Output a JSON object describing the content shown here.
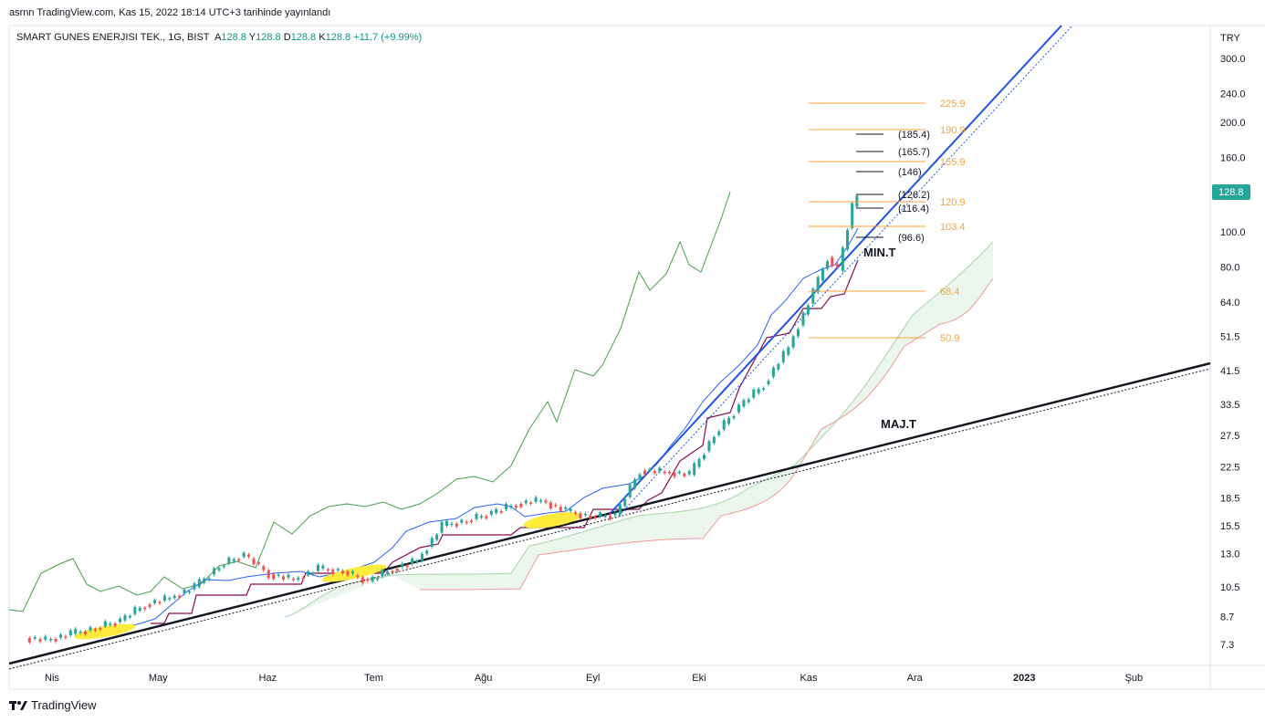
{
  "header": "asrnn TradingView.com, Kas 15, 2022 18:14 UTC+3 tarihinde yayınlandı",
  "legend": {
    "symbol": "SMART GUNES ENERJISI TEK., 1G, BIST",
    "a_key": "A",
    "a_val": "128.8",
    "y_key": "Y",
    "y_val": "128.8",
    "d_key": "D",
    "d_val": "128.8",
    "k_key": "K",
    "k_val": "128.8",
    "change": "+11.7 (+9.99%)"
  },
  "footer": {
    "brand": "TradingView",
    "logo_icon": "tradingview-logo-icon"
  },
  "colors": {
    "up": "#26a69a",
    "down": "#ef5350",
    "tenkan": "#2962ff",
    "kijun": "#880e4f",
    "chikou": "#43a047",
    "cloud": "#a5d6a7",
    "fib": "#f7a23b",
    "trend": "#1e53e5"
  },
  "chart_data": {
    "type": "candlestick",
    "currency": "TRY",
    "scale": "log",
    "ylim": [
      6.8,
      380
    ],
    "y_ticks": [
      "300.0",
      "240.0",
      "200.0",
      "160.0",
      "128.8",
      "100.0",
      "80.0",
      "64.0",
      "51.5",
      "41.5",
      "33.5",
      "27.5",
      "22.5",
      "18.5",
      "15.5",
      "13.0",
      "10.5",
      "8.7",
      "7.3"
    ],
    "y_tick_values": [
      300,
      240,
      200,
      160,
      128.8,
      100,
      80,
      64,
      51.5,
      41.5,
      33.5,
      27.5,
      22.5,
      18.5,
      15.5,
      13.0,
      10.5,
      8.7,
      7.3
    ],
    "last_price": "128.8",
    "x_ticks": [
      "Nis",
      "May",
      "Haz",
      "Tem",
      "Ağu",
      "Eyl",
      "Eki",
      "Kas",
      "Ara",
      "2023",
      "Şub"
    ],
    "x_tick_dates": [
      "2022-04-01",
      "2022-05-01",
      "2022-06-01",
      "2022-07-01",
      "2022-08-01",
      "2022-09-01",
      "2022-10-01",
      "2022-11-01",
      "2022-12-01",
      "2023-01-01",
      "2023-02-01"
    ],
    "close_series": [
      [
        "2022-03-25",
        7.6
      ],
      [
        "2022-03-31",
        7.5
      ],
      [
        "2022-04-07",
        7.8
      ],
      [
        "2022-04-14",
        8.1
      ],
      [
        "2022-04-21",
        8.5
      ],
      [
        "2022-04-28",
        9.4
      ],
      [
        "2022-05-05",
        9.8
      ],
      [
        "2022-05-12",
        10.5
      ],
      [
        "2022-05-19",
        12.0
      ],
      [
        "2022-05-26",
        12.9
      ],
      [
        "2022-06-02",
        11.4
      ],
      [
        "2022-06-09",
        11.0
      ],
      [
        "2022-06-16",
        11.8
      ],
      [
        "2022-06-23",
        11.6
      ],
      [
        "2022-06-30",
        10.9
      ],
      [
        "2022-07-07",
        11.8
      ],
      [
        "2022-07-14",
        12.4
      ],
      [
        "2022-07-21",
        15.5
      ],
      [
        "2022-07-28",
        16.0
      ],
      [
        "2022-08-04",
        16.8
      ],
      [
        "2022-08-11",
        17.8
      ],
      [
        "2022-08-18",
        18.2
      ],
      [
        "2022-08-25",
        17.0
      ],
      [
        "2022-09-01",
        16.4
      ],
      [
        "2022-09-08",
        16.6
      ],
      [
        "2022-09-15",
        22.0
      ],
      [
        "2022-09-22",
        21.8
      ],
      [
        "2022-09-29",
        21.4
      ],
      [
        "2022-10-06",
        27.5
      ],
      [
        "2022-10-13",
        33.0
      ],
      [
        "2022-10-20",
        38.0
      ],
      [
        "2022-10-27",
        48.0
      ],
      [
        "2022-11-03",
        68.0
      ],
      [
        "2022-11-07",
        85.0
      ],
      [
        "2022-11-10",
        78.0
      ],
      [
        "2022-11-14",
        117.1
      ],
      [
        "2022-11-15",
        128.8
      ]
    ],
    "fib_levels": [
      "225.9",
      "190.9",
      "155.9",
      "120.9",
      "103.4",
      "68.4",
      "50.9"
    ],
    "target_levels": [
      "185.4",
      "165.7",
      "146",
      "126.2",
      "116.4",
      "96.6"
    ],
    "annotations": [
      "MIN.T",
      "MAJ.T"
    ]
  }
}
